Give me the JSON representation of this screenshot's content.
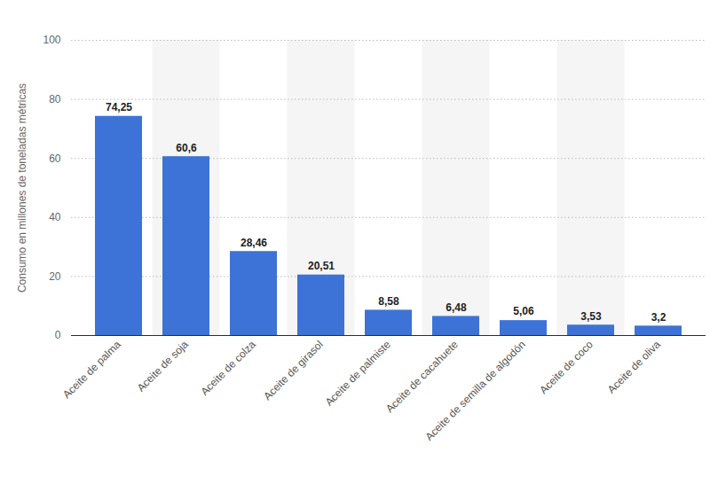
{
  "chart_data": {
    "type": "bar",
    "y_label": "Consumo en millones de toneladas métricas",
    "categories": [
      "Aceite de palma",
      "Aceite de soja",
      "Aceite de colza",
      "Aceite de girasol",
      "Aceite de palmiste",
      "Aceite de cacahuete",
      "Aceite de semilla de algodón",
      "Aceite de coco",
      "Aceite de oliva"
    ],
    "values": [
      74.25,
      60.6,
      28.46,
      20.51,
      8.58,
      6.48,
      5.06,
      3.53,
      3.2
    ],
    "value_labels": [
      "74,25",
      "60,6",
      "28,46",
      "20,51",
      "8,58",
      "6,48",
      "5,06",
      "3,53",
      "3,2"
    ],
    "color": "#3d73d6",
    "ylim": [
      0,
      100
    ],
    "yticks": [
      0,
      20,
      40,
      60,
      80,
      100
    ],
    "grid": true,
    "data_labels": true
  }
}
